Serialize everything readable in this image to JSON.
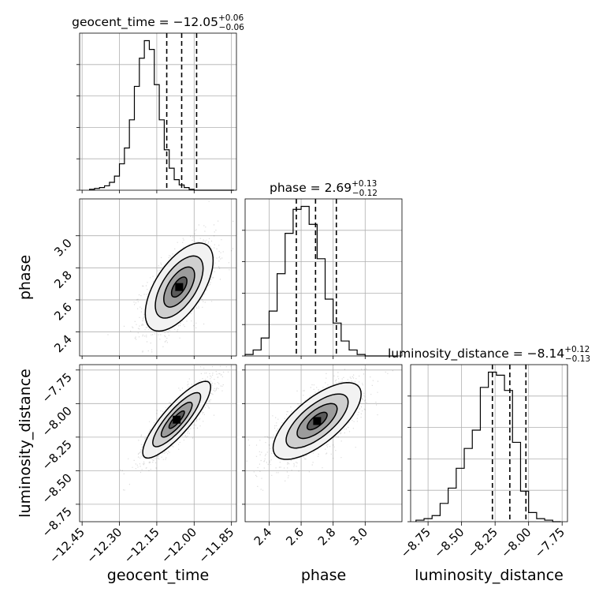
{
  "chart_data": {
    "type": "corner",
    "parameters": [
      "geocent_time",
      "phase",
      "luminosity_distance"
    ],
    "axis_labels": {
      "x": [
        "geocent_time",
        "phase",
        "luminosity_distance"
      ],
      "y": [
        "phase",
        "luminosity_distance"
      ]
    },
    "ranges": {
      "geocent_time": [
        -12.46,
        -11.83
      ],
      "phase": [
        2.25,
        3.23
      ],
      "luminosity_distance": [
        -8.88,
        -7.71
      ]
    },
    "ticks": {
      "geocent_time": {
        "values": [
          -12.45,
          -12.3,
          -12.15,
          -12.0,
          -11.85
        ],
        "labels": [
          "−12.45",
          "−12.30",
          "−12.15",
          "−12.00",
          "−11.85"
        ]
      },
      "phase_x": {
        "values": [
          2.4,
          2.6,
          2.8,
          3.0
        ],
        "labels": [
          "2.4",
          "2.6",
          "2.8",
          "3.0"
        ]
      },
      "phase_y": {
        "values": [
          2.4,
          2.6,
          2.8,
          3.0
        ],
        "labels": [
          "2.4",
          "2.6",
          "2.8",
          "3.0"
        ]
      },
      "luminosity_distance": {
        "values": [
          -8.75,
          -8.5,
          -8.25,
          -8.0,
          -7.75
        ],
        "labels": [
          "−8.75",
          "−8.50",
          "−8.25",
          "−8.00",
          "−7.75"
        ]
      }
    },
    "titles": [
      {
        "param": "geocent_time",
        "text": "geocent_time = −12.05",
        "sup": "+0.06",
        "sub": "−0.06"
      },
      {
        "param": "phase",
        "text": "phase = 2.69",
        "sup": "+0.13",
        "sub": "−0.12"
      },
      {
        "param": "luminosity_distance",
        "text": "luminosity_distance = −8.14",
        "sup": "+0.12",
        "sub": "−0.13"
      }
    ],
    "quantiles": {
      "geocent_time": [
        -12.11,
        -12.05,
        -11.99
      ],
      "phase": [
        2.57,
        2.69,
        2.82
      ],
      "luminosity_distance": [
        -8.27,
        -8.14,
        -8.02
      ]
    },
    "histograms": {
      "geocent_time": {
        "edges": [
          -12.42,
          -12.4,
          -12.38,
          -12.36,
          -12.34,
          -12.32,
          -12.3,
          -12.28,
          -12.26,
          -12.24,
          -12.22,
          -12.2,
          -12.18,
          -12.16,
          -12.14,
          -12.12,
          -12.1,
          -12.08,
          -12.06,
          -12.04,
          -12.02,
          -12.0,
          -11.98,
          -11.96,
          -11.94,
          -11.92,
          -11.9,
          -11.88,
          -11.86,
          -11.84
        ],
        "counts": [
          1,
          2,
          3,
          5,
          9,
          16,
          30,
          48,
          80,
          118,
          150,
          170,
          160,
          120,
          80,
          46,
          25,
          12,
          6,
          3,
          1,
          0,
          0,
          0,
          0,
          0,
          0,
          0,
          0
        ]
      },
      "phase": {
        "edges": [
          2.25,
          2.3,
          2.35,
          2.4,
          2.45,
          2.5,
          2.55,
          2.6,
          2.65,
          2.7,
          2.75,
          2.8,
          2.85,
          2.9,
          2.95,
          3.0,
          3.05,
          3.1,
          3.15,
          3.2
        ],
        "counts": [
          1,
          4,
          12,
          30,
          55,
          82,
          98,
          100,
          88,
          65,
          38,
          22,
          10,
          4,
          1,
          0,
          0,
          0,
          0
        ]
      },
      "luminosity_distance": {
        "edges": [
          -8.84,
          -8.78,
          -8.72,
          -8.66,
          -8.6,
          -8.54,
          -8.48,
          -8.42,
          -8.36,
          -8.3,
          -8.24,
          -8.18,
          -8.12,
          -8.06,
          -8.0,
          -7.94,
          -7.88,
          -7.82,
          -7.76
        ],
        "counts": [
          1,
          2,
          4,
          12,
          22,
          35,
          48,
          60,
          88,
          98,
          96,
          86,
          52,
          20,
          6,
          2,
          1,
          0
        ]
      }
    },
    "joint_2d": [
      {
        "x": "geocent_time",
        "y": "phase",
        "correlation": 0.6,
        "peak": [
          -12.06,
          2.68
        ],
        "sigma": [
          0.062,
          0.125
        ]
      },
      {
        "x": "geocent_time",
        "y": "luminosity_distance",
        "correlation": 0.85,
        "peak": [
          -12.07,
          -8.12
        ],
        "sigma": [
          0.062,
          0.13
        ]
      },
      {
        "x": "phase",
        "y": "luminosity_distance",
        "correlation": 0.7,
        "peak": [
          2.7,
          -8.13
        ],
        "sigma": [
          0.125,
          0.13
        ]
      }
    ],
    "grid": true
  }
}
